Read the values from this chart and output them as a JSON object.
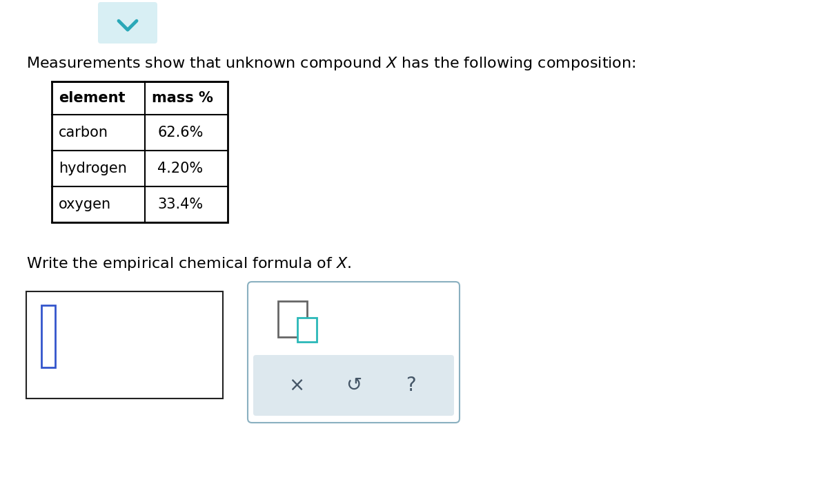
{
  "bg_color": "#ffffff",
  "title_fontsize": 16,
  "table_headers": [
    "element",
    "mass %"
  ],
  "table_rows": [
    [
      "carbon",
      "62.6%"
    ],
    [
      "hydrogen",
      "4.20%"
    ],
    [
      "oxygen",
      "33.4%"
    ]
  ],
  "subtitle_fontsize": 16,
  "chevron_bg": "#d8eff4",
  "chevron_color": "#2aa8b8",
  "input_box_border": "#222222",
  "cursor_color": "#3355cc",
  "cursor_border": "#3355cc",
  "toolbar_bg": "#dde8ee",
  "toolbar_border": "#8ab0c0",
  "icon_big_color": "#666666",
  "icon_small_color": "#2ab8b8",
  "symbol_color": "#445566",
  "table_left_align_col0": true
}
